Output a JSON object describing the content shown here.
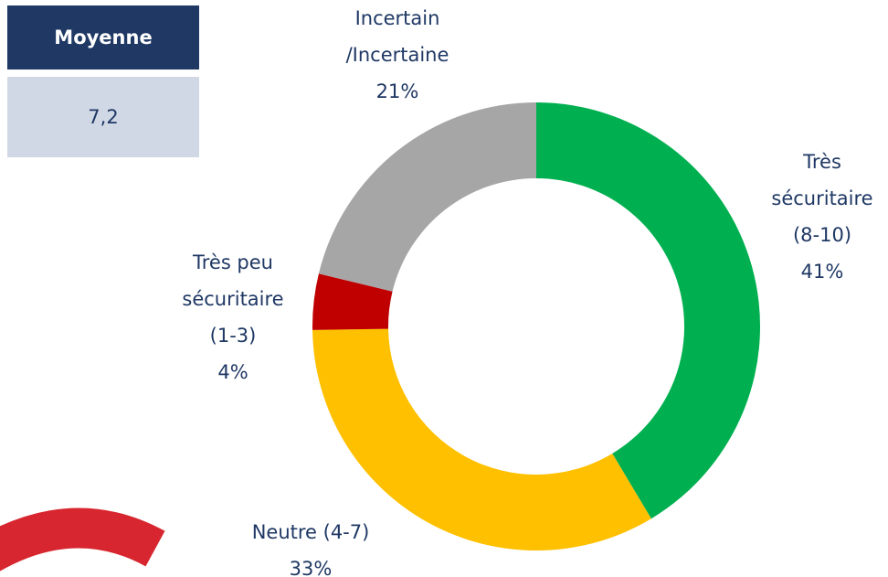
{
  "chart_data": {
    "type": "donut",
    "categories": [
      "Très\nsécuritaire\n(8-10)",
      "Neutre (4-7)",
      "Très peu\nsécuritaire\n(1-3)",
      "Incertain\n/Incertaine"
    ],
    "values": [
      41,
      33,
      4,
      21
    ],
    "value_labels": [
      "41%",
      "33%",
      "4%",
      "21%"
    ],
    "colors": [
      "#00b050",
      "#ffc000",
      "#c00000",
      "#a6a6a6"
    ]
  },
  "table": {
    "header": "Moyenne",
    "value": "7,2"
  }
}
